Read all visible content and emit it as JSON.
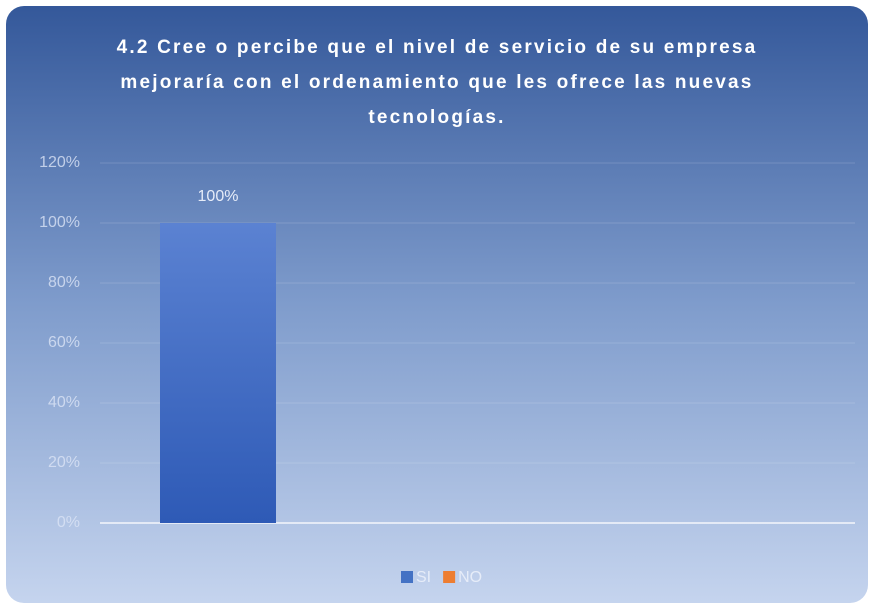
{
  "chart_data": {
    "type": "bar",
    "title": "4.2 Cree o percibe que el nivel de servicio de su empresa mejoraría con el ordenamiento que les ofrece las nuevas tecnologías.",
    "categories": [
      null
    ],
    "series": [
      {
        "name": "SI",
        "color": "#4472c4",
        "values": [
          100
        ],
        "value_labels": [
          "100%"
        ]
      },
      {
        "name": "NO",
        "color": "#ed7d31",
        "values": [
          0
        ]
      }
    ],
    "ylim": [
      0,
      120
    ],
    "yticks": [
      {
        "value": 0,
        "label": "0%"
      },
      {
        "value": 20,
        "label": "20%"
      },
      {
        "value": 40,
        "label": "40%"
      },
      {
        "value": 60,
        "label": "60%"
      },
      {
        "value": 80,
        "label": "80%"
      },
      {
        "value": 100,
        "label": "100%"
      },
      {
        "value": 120,
        "label": "120%"
      }
    ],
    "grid": true,
    "legend": "bottom"
  }
}
